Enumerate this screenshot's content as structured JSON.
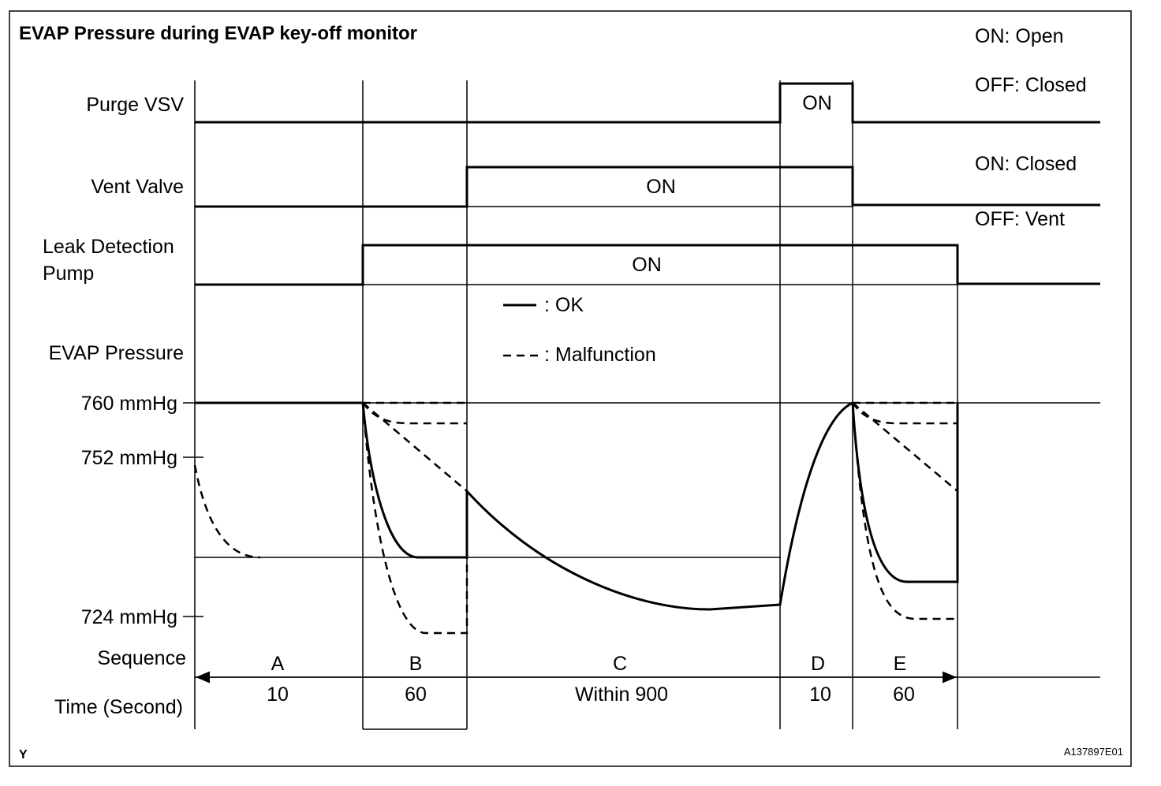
{
  "title": "EVAP Pressure during EVAP key-off monitor",
  "notes": [
    "ON: Open",
    "OFF: Closed",
    "ON: Closed",
    "OFF: Vent"
  ],
  "rows": {
    "purge_vsv": "Purge VSV",
    "vent_valve": "Vent Valve",
    "leak_pump": [
      "Leak Detection",
      "Pump"
    ],
    "evap_pressure": "EVAP Pressure",
    "sequence": "Sequence",
    "time": "Time (Second)"
  },
  "on_labels": [
    "ON",
    "ON",
    "ON"
  ],
  "legend": {
    "ok": ": OK",
    "malfunction": ": Malfunction"
  },
  "pressure_labels": [
    "760 mmHg",
    "752 mmHg",
    "724 mmHg"
  ],
  "sequence": [
    "A",
    "B",
    "C",
    "D",
    "E"
  ],
  "times": [
    "10",
    "60",
    "Within 900",
    "10",
    "60"
  ],
  "corner_mark": "Y",
  "figure_id": "A137897E01"
}
